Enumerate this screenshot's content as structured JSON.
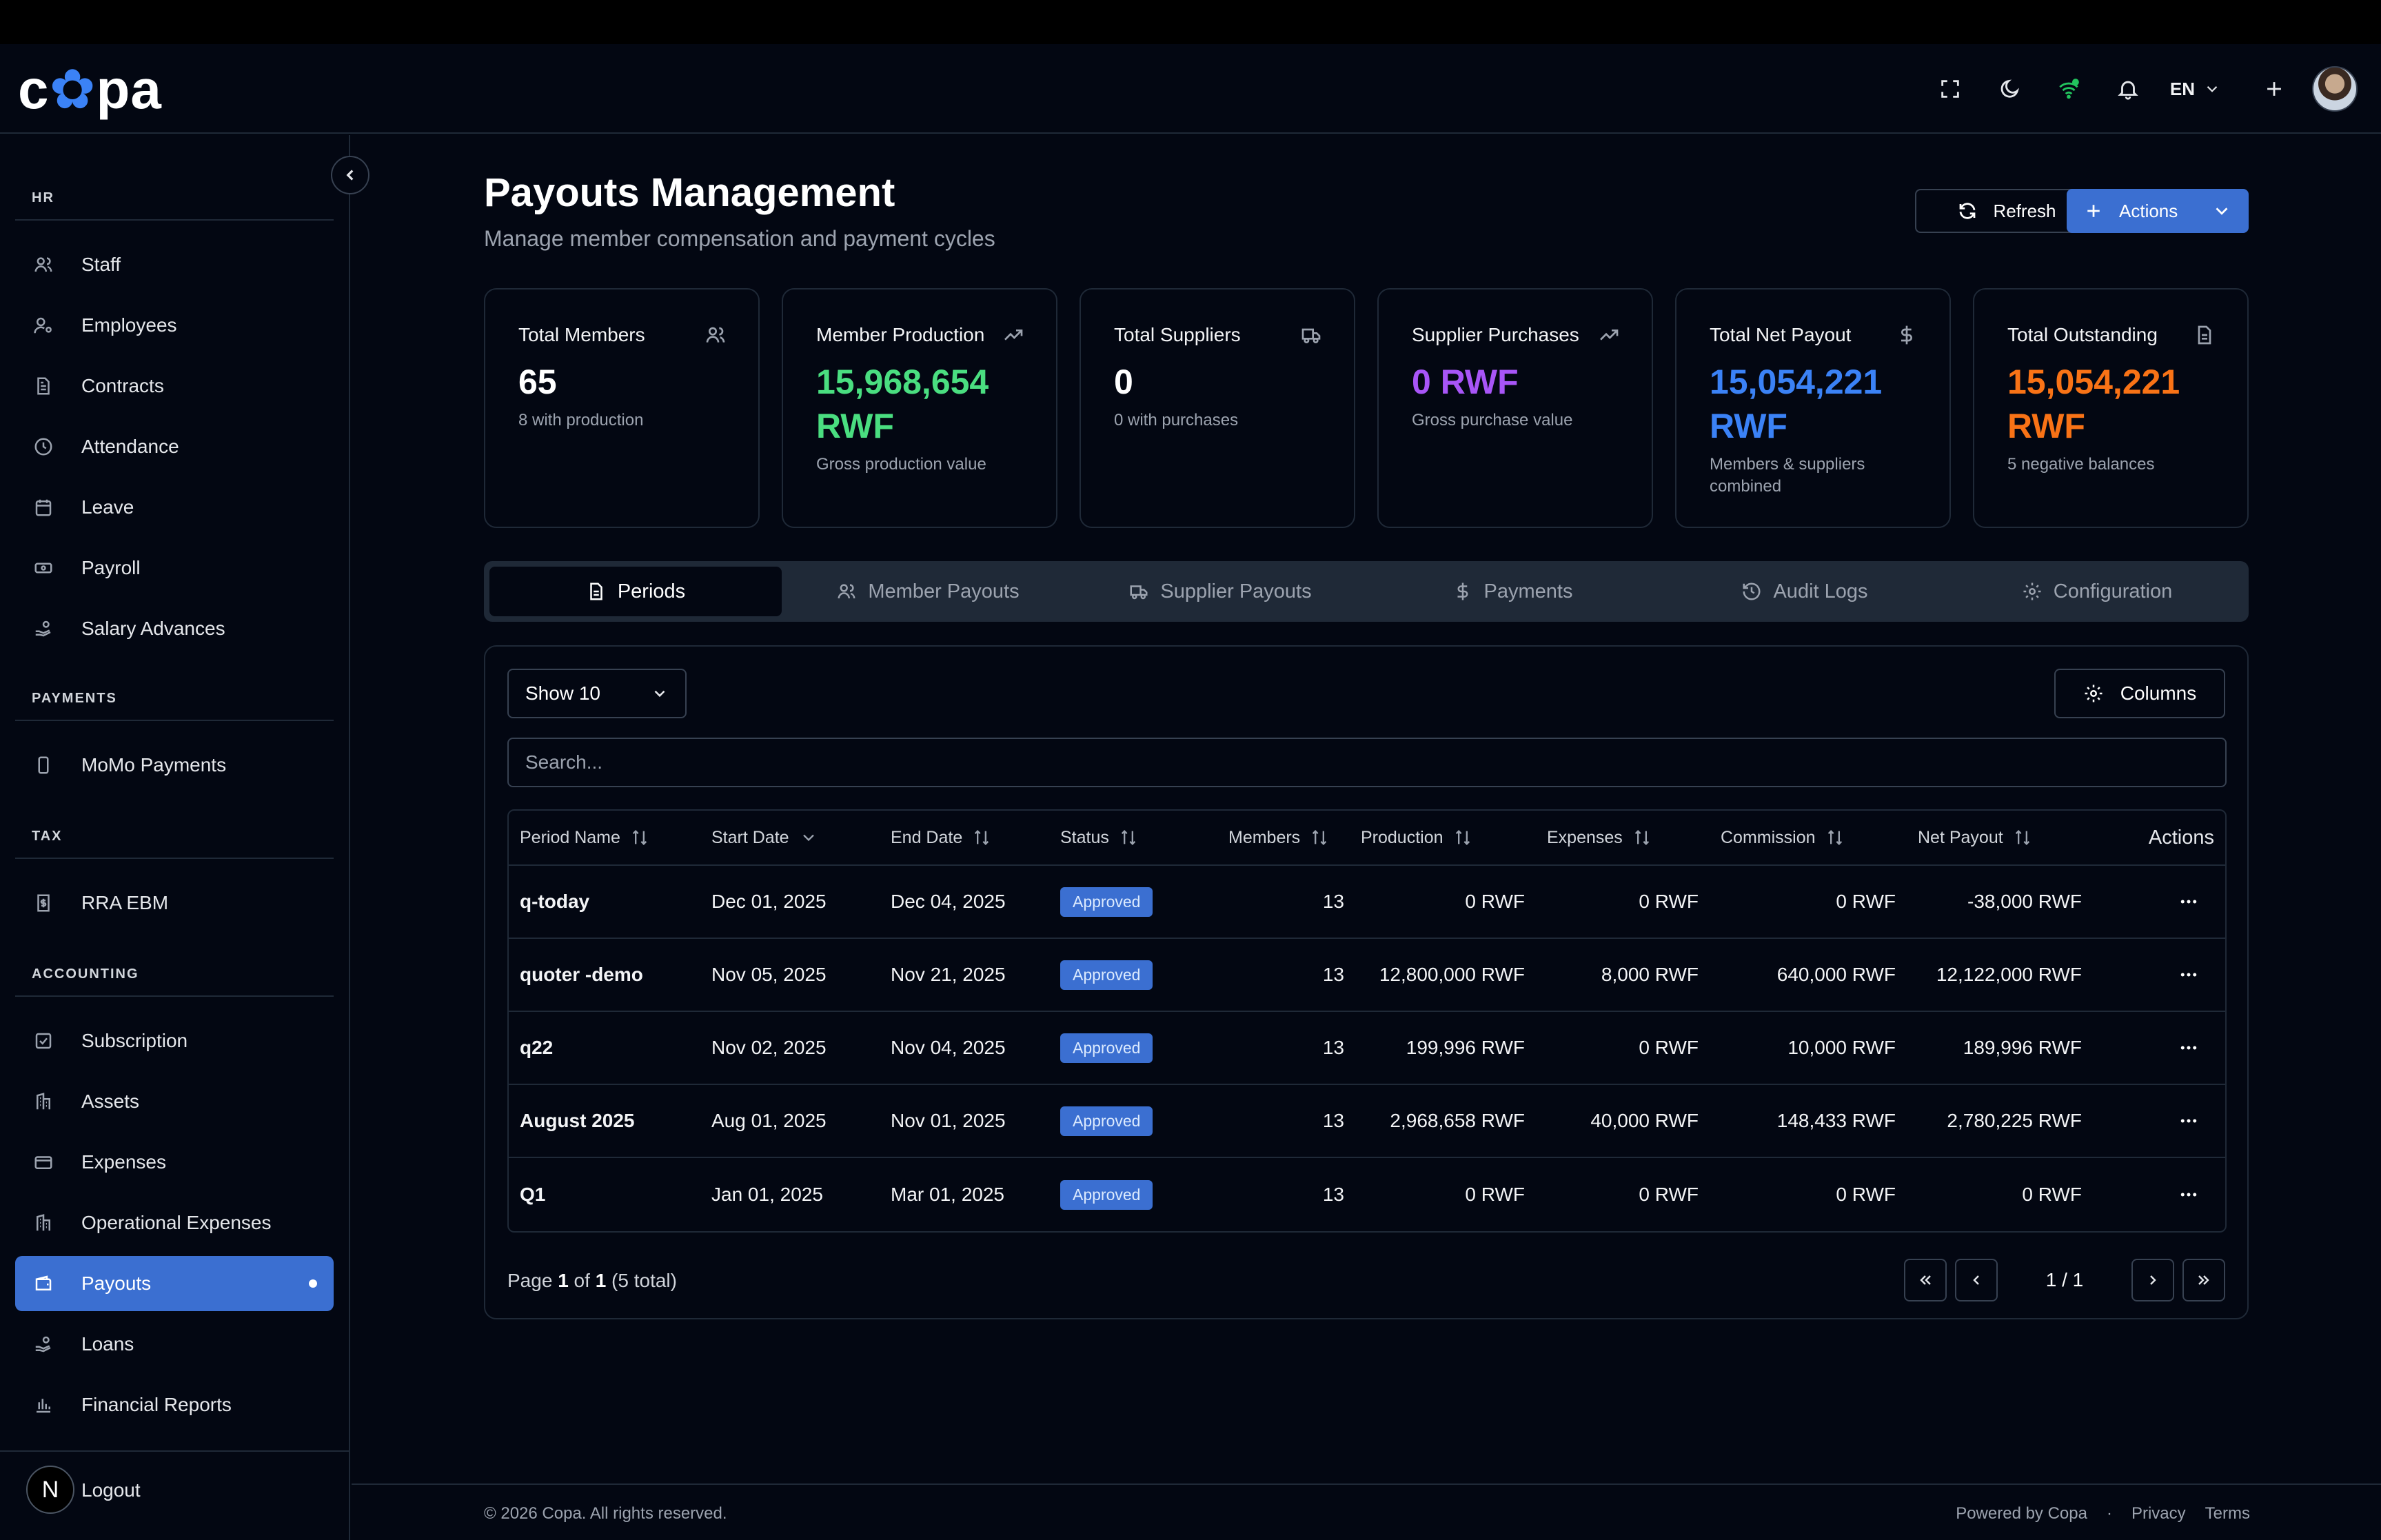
{
  "app": {
    "logo_prefix": "c",
    "logo_suffix": "pa"
  },
  "header": {
    "language": "EN"
  },
  "sidebar": {
    "sections": [
      {
        "title": "HR"
      },
      {
        "title": "PAYMENTS"
      },
      {
        "title": "TAX"
      },
      {
        "title": "ACCOUNTING"
      }
    ],
    "items": [
      {
        "label": "Staff",
        "icon": "users-icon"
      },
      {
        "label": "Employees",
        "icon": "user-key-icon"
      },
      {
        "label": "Contracts",
        "icon": "document-icon"
      },
      {
        "label": "Attendance",
        "icon": "clock-icon"
      },
      {
        "label": "Leave",
        "icon": "calendar-icon"
      },
      {
        "label": "Payroll",
        "icon": "banknote-icon"
      },
      {
        "label": "Salary Advances",
        "icon": "hand-coins-icon"
      },
      {
        "label": "MoMo Payments",
        "icon": "smartphone-icon"
      },
      {
        "label": "RRA EBM",
        "icon": "receipt-icon"
      },
      {
        "label": "Subscription",
        "icon": "check-square-icon"
      },
      {
        "label": "Assets",
        "icon": "building-icon"
      },
      {
        "label": "Expenses",
        "icon": "credit-card-icon"
      },
      {
        "label": "Operational Expenses",
        "icon": "building-icon"
      },
      {
        "label": "Payouts",
        "icon": "wallet-icon",
        "active": true
      },
      {
        "label": "Loans",
        "icon": "hand-coins-icon"
      },
      {
        "label": "Financial Reports",
        "icon": "bar-chart-icon"
      }
    ],
    "logout_badge": "N",
    "logout_label": "Logout"
  },
  "page": {
    "title": "Payouts Management",
    "subtitle": "Manage member compensation and payment cycles",
    "refresh_label": "Refresh",
    "actions_label": "Actions"
  },
  "cards": [
    {
      "title": "Total Members",
      "value": "65",
      "sub": "8 with production",
      "color": "#ffffff",
      "icon": "users-icon"
    },
    {
      "title": "Member Production",
      "value": "15,968,654 RWF",
      "sub": "Gross production value",
      "color": "#4ade80",
      "icon": "trending-up-icon"
    },
    {
      "title": "Total Suppliers",
      "value": "0",
      "sub": "0 with purchases",
      "color": "#ffffff",
      "icon": "truck-icon"
    },
    {
      "title": "Supplier Purchases",
      "value": "0 RWF",
      "sub": "Gross purchase value",
      "color": "#a855f7",
      "icon": "trending-up-icon"
    },
    {
      "title": "Total Net Payout",
      "value": "15,054,221 RWF",
      "sub": "Members & suppliers combined",
      "color": "#3b82f6",
      "icon": "dollar-icon"
    },
    {
      "title": "Total Outstanding",
      "value": "15,054,221 RWF",
      "sub": "5 negative balances",
      "color": "#f97316",
      "icon": "file-icon"
    }
  ],
  "tabs": [
    {
      "label": "Periods",
      "active": true
    },
    {
      "label": "Member Payouts"
    },
    {
      "label": "Supplier Payouts"
    },
    {
      "label": "Payments"
    },
    {
      "label": "Audit Logs"
    },
    {
      "label": "Configuration"
    }
  ],
  "table": {
    "show_label": "Show 10",
    "columns_label": "Columns",
    "search_placeholder": "Search...",
    "headers": {
      "name": "Period Name",
      "start": "Start Date",
      "end": "End Date",
      "status": "Status",
      "members": "Members",
      "production": "Production",
      "expenses": "Expenses",
      "commission": "Commission",
      "net": "Net Payout",
      "actions": "Actions"
    },
    "rows": [
      {
        "name": "q-today",
        "start": "Dec 01, 2025",
        "end": "Dec 04, 2025",
        "status": "Approved",
        "members": "13",
        "production": "0 RWF",
        "expenses": "0 RWF",
        "commission": "0 RWF",
        "net": "-38,000 RWF"
      },
      {
        "name": "quoter -demo",
        "start": "Nov 05, 2025",
        "end": "Nov 21, 2025",
        "status": "Approved",
        "members": "13",
        "production": "12,800,000 RWF",
        "expenses": "8,000 RWF",
        "commission": "640,000 RWF",
        "net": "12,122,000 RWF"
      },
      {
        "name": "q22",
        "start": "Nov 02, 2025",
        "end": "Nov 04, 2025",
        "status": "Approved",
        "members": "13",
        "production": "199,996 RWF",
        "expenses": "0 RWF",
        "commission": "10,000 RWF",
        "net": "189,996 RWF"
      },
      {
        "name": "August 2025",
        "start": "Aug 01, 2025",
        "end": "Nov 01, 2025",
        "status": "Approved",
        "members": "13",
        "production": "2,968,658 RWF",
        "expenses": "40,000 RWF",
        "commission": "148,433 RWF",
        "net": "2,780,225 RWF"
      },
      {
        "name": "Q1",
        "start": "Jan 01, 2025",
        "end": "Mar 01, 2025",
        "status": "Approved",
        "members": "13",
        "production": "0 RWF",
        "expenses": "0 RWF",
        "commission": "0 RWF",
        "net": "0 RWF"
      }
    ],
    "pagination": {
      "page_word": "Page",
      "page": "1",
      "of_word": "of",
      "total_pages": "1",
      "total_text": "(5 total)",
      "indicator": "1 / 1"
    }
  },
  "footer": {
    "copyright": "© 2026 Copa. All rights reserved.",
    "powered": "Powered by Copa",
    "sep": "·",
    "privacy": "Privacy",
    "terms": "Terms"
  }
}
